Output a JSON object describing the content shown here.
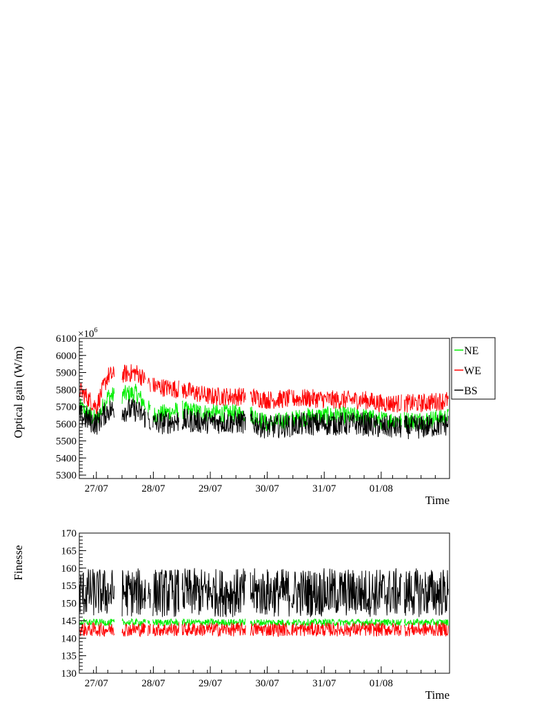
{
  "colors": {
    "NE": "#00ee00",
    "WE": "#ff0000",
    "BS": "#000000",
    "axis": "#000000"
  },
  "chart_data": [
    {
      "type": "line",
      "title": "",
      "ylabel": "Optical gain (W/m)",
      "xlabel": "Time",
      "y_multiplier": "×10",
      "y_multiplier_exp": "6",
      "ylim": [
        5280,
        6100
      ],
      "y_ticks": [
        5300,
        5400,
        5500,
        5600,
        5700,
        5800,
        5900,
        6000,
        6100
      ],
      "xlim": [
        0,
        6.5
      ],
      "x_ticks": [
        {
          "x": 0.3,
          "label": "27/07"
        },
        {
          "x": 1.3,
          "label": "28/07"
        },
        {
          "x": 2.3,
          "label": "29/07"
        },
        {
          "x": 3.3,
          "label": "30/07"
        },
        {
          "x": 4.3,
          "label": "31/07"
        },
        {
          "x": 5.3,
          "label": "01/08"
        }
      ],
      "legend": [
        "NE",
        "WE",
        "BS"
      ],
      "legend_position": "right",
      "series": [
        {
          "name": "NE",
          "band": [
            [
              0,
              5700
            ],
            [
              0.3,
              5620
            ],
            [
              0.5,
              5760
            ],
            [
              1.0,
              5780
            ],
            [
              1.3,
              5650
            ],
            [
              1.8,
              5680
            ],
            [
              2.3,
              5660
            ],
            [
              3.0,
              5660
            ],
            [
              3.3,
              5600
            ],
            [
              4.0,
              5640
            ],
            [
              4.5,
              5650
            ],
            [
              5.0,
              5640
            ],
            [
              5.3,
              5620
            ],
            [
              6.0,
              5620
            ],
            [
              6.5,
              5640
            ]
          ]
        },
        {
          "name": "WE",
          "band": [
            [
              0,
              5800
            ],
            [
              0.3,
              5700
            ],
            [
              0.5,
              5880
            ],
            [
              1.0,
              5900
            ],
            [
              1.3,
              5820
            ],
            [
              1.8,
              5800
            ],
            [
              2.3,
              5760
            ],
            [
              3.0,
              5760
            ],
            [
              3.3,
              5740
            ],
            [
              4.0,
              5750
            ],
            [
              4.5,
              5740
            ],
            [
              5.0,
              5740
            ],
            [
              5.3,
              5720
            ],
            [
              6.0,
              5720
            ],
            [
              6.5,
              5740
            ]
          ]
        },
        {
          "name": "BS",
          "band": [
            [
              0,
              5650
            ],
            [
              0.3,
              5600
            ],
            [
              0.5,
              5680
            ],
            [
              1.0,
              5680
            ],
            [
              1.3,
              5600
            ],
            [
              1.8,
              5620
            ],
            [
              2.3,
              5610
            ],
            [
              3.0,
              5610
            ],
            [
              3.3,
              5580
            ],
            [
              4.0,
              5600
            ],
            [
              4.5,
              5600
            ],
            [
              5.0,
              5600
            ],
            [
              5.3,
              5580
            ],
            [
              6.0,
              5580
            ],
            [
              6.5,
              5600
            ]
          ]
        }
      ]
    },
    {
      "type": "line",
      "title": "",
      "ylabel": "Finesse",
      "xlabel": "Time",
      "ylim": [
        130,
        170
      ],
      "y_ticks": [
        130,
        135,
        140,
        145,
        150,
        155,
        160,
        165,
        170
      ],
      "xlim": [
        0,
        6.5
      ],
      "x_ticks": [
        {
          "x": 0.3,
          "label": "27/07"
        },
        {
          "x": 1.3,
          "label": "28/07"
        },
        {
          "x": 2.3,
          "label": "29/07"
        },
        {
          "x": 3.3,
          "label": "30/07"
        },
        {
          "x": 4.3,
          "label": "31/07"
        },
        {
          "x": 5.3,
          "label": "01/08"
        }
      ],
      "series": [
        {
          "name": "BS",
          "band_center": 153,
          "band_halfwidth": 7
        },
        {
          "name": "NE",
          "band_center": 144.5,
          "band_halfwidth": 1
        },
        {
          "name": "WE",
          "band_center": 142.5,
          "band_halfwidth": 2
        }
      ]
    }
  ]
}
